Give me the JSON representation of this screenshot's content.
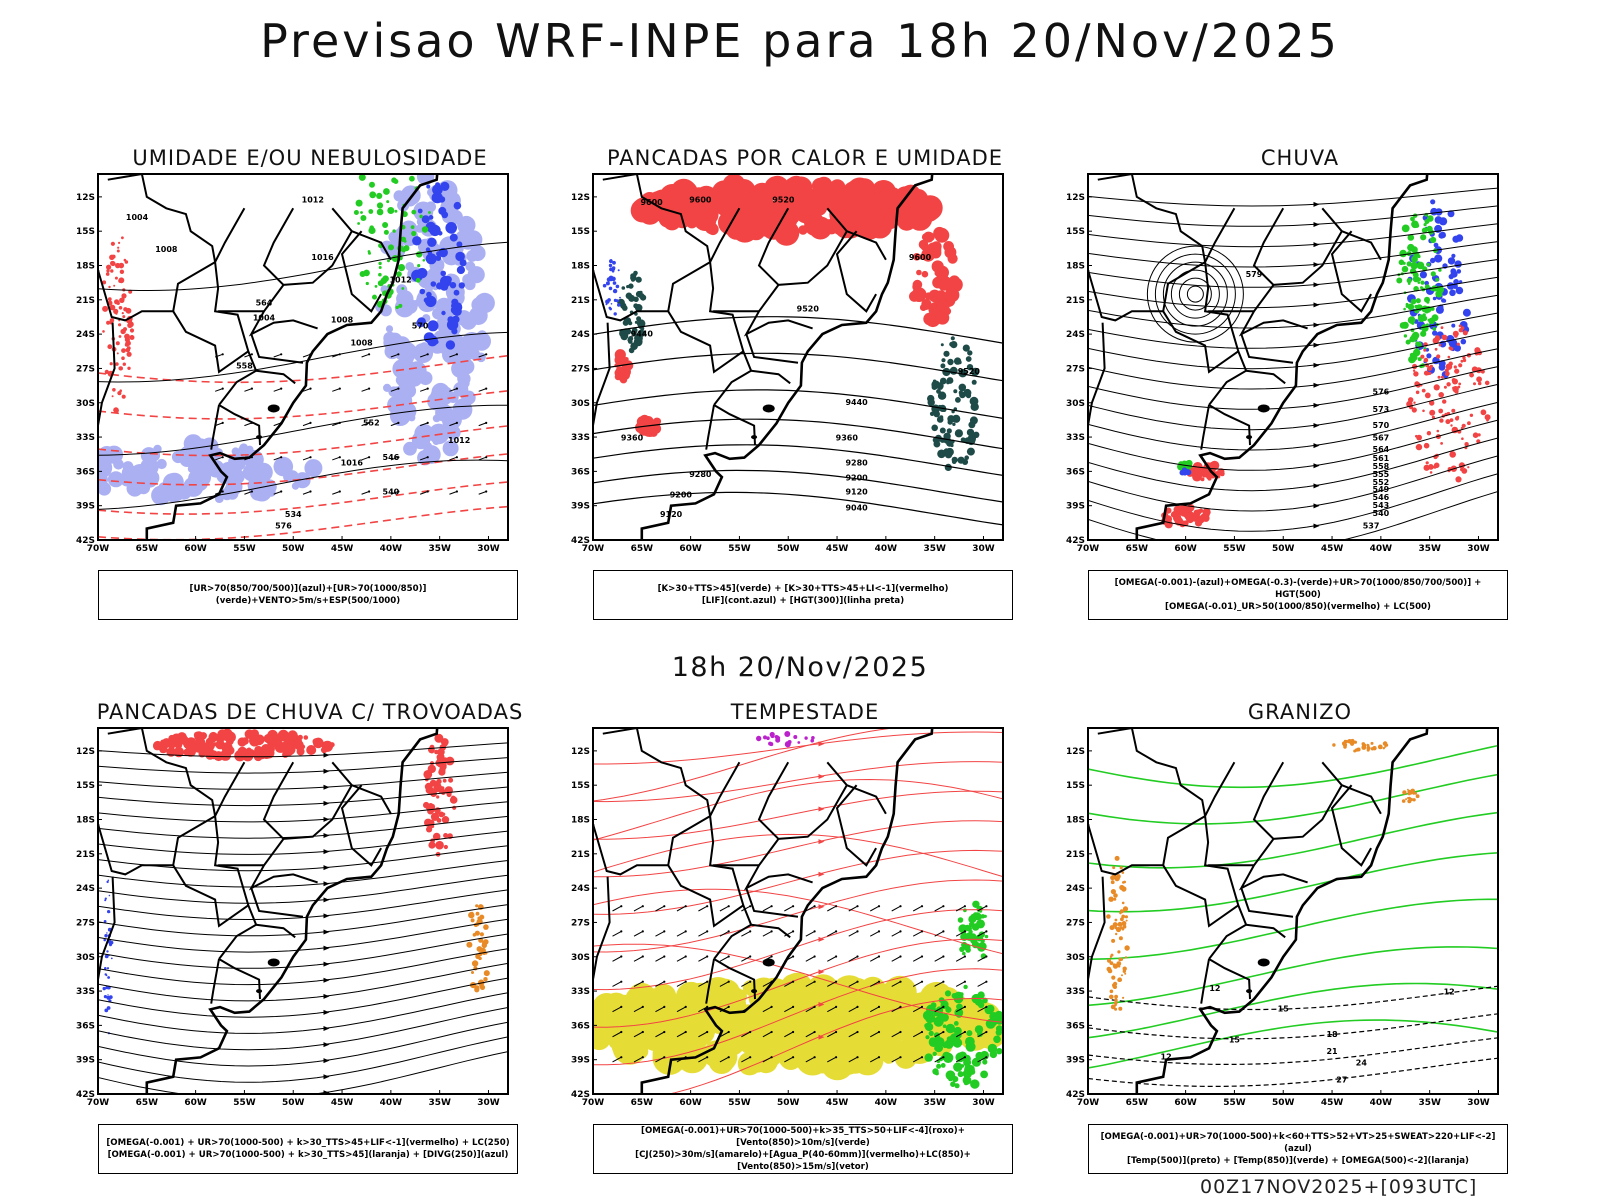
{
  "header": {
    "title": "Previsao WRF-INPE  para 18h 20/Nov/2025",
    "mid_title": "18h 20/Nov/2025",
    "footer": "00Z17NOV2025+[093UTC]"
  },
  "axes": {
    "lat_labels": [
      "12S",
      "15S",
      "18S",
      "21S",
      "24S",
      "27S",
      "30S",
      "33S",
      "36S",
      "39S",
      "42S"
    ],
    "lon_labels": [
      "70W",
      "65W",
      "60W",
      "55W",
      "50W",
      "45W",
      "40W",
      "35W",
      "30W"
    ]
  },
  "colors": {
    "red": "#f24444",
    "blue": "#3344ee",
    "lightblue": "#aab0f2",
    "green": "#22cc22",
    "darkteal": "#1e4a48",
    "yellow": "#e6dc36",
    "orange": "#e88a26",
    "purple": "#bb22cc",
    "black": "#000000"
  },
  "panels": [
    {
      "id": "umidade",
      "title": "UMIDADE E/OU NEBULOSIDADE",
      "legend": [
        "[UR>70(850/700/500)](azul)+[UR>70(1000/850)](verde)+VENTO>5m/s+ESP(500/1000)"
      ],
      "contour_labels": [
        "1004",
        "1008",
        "1012",
        "1016",
        "1004",
        "1008",
        "1012",
        "1008",
        "1012",
        "1016",
        "576",
        "570",
        "564",
        "558",
        "552",
        "546",
        "540",
        "534"
      ]
    },
    {
      "id": "pancadas-calor",
      "title": "PANCADAS POR CALOR E UMIDADE",
      "legend": [
        "[K>30+TTS>45](verde) + [K>30+TTS>45+LI<-1](vermelho)",
        "[LIF](cont.azul) + [HGT(300)](linha preta)"
      ],
      "contour_labels": [
        "9600",
        "9600",
        "9520",
        "9440",
        "9360",
        "9280",
        "9200",
        "9120",
        "9520",
        "9440",
        "9360",
        "9280",
        "9200",
        "9120",
        "9040",
        "9600",
        "9520"
      ]
    },
    {
      "id": "chuva",
      "title": "CHUVA",
      "legend": [
        "[OMEGA(-0.001)-(azul)+OMEGA(-0.3)-(verde)+UR>70(1000/850/700/500)] + HGT(500)",
        "[OMEGA(-0.01)_UR>50(1000/850)(vermelho) + LC(500)"
      ],
      "contour_labels": [
        "579",
        "576",
        "573",
        "570",
        "567",
        "564",
        "561",
        "558",
        "555",
        "552",
        "549",
        "546",
        "543",
        "540",
        "537"
      ]
    },
    {
      "id": "pancadas-trovoadas",
      "title": "PANCADAS DE CHUVA C/ TROVOADAS",
      "legend": [
        "[OMEGA(-0.001) + UR>70(1000-500) + k>30_TTS>45+LIF<-1](vermelho) + LC(250)",
        "[OMEGA(-0.001) + UR>70(1000-500) + k>30_TTS>45](laranja) + [DIVG(250)](azul)"
      ],
      "contour_labels": []
    },
    {
      "id": "tempestade",
      "title": "TEMPESTADE",
      "legend": [
        "[OMEGA(-0.001)+UR>70(1000-500)+k>35_TTS>50+LIF<-4](roxo)+[Vento(850)>10m/s](verde)",
        "[CJ(250)>30m/s](amarelo)+[Agua_P(40-60mm)](vermelho)+LC(850)+[Vento(850)>15m/s](vetor)"
      ],
      "contour_labels": []
    },
    {
      "id": "granizo",
      "title": "GRANIZO",
      "legend": [
        "[OMEGA(-0.001)+UR>70(1000-500)+k<60+TTS>52+VT>25+SWEAT>220+LIF<-2](azul)",
        "[Temp(500)](preto) + [Temp(850)](verde) + [OMEGA(500)<-2](laranja)"
      ],
      "contour_labels": [
        "12",
        "12",
        "15",
        "15",
        "18",
        "21",
        "24",
        "27",
        "12"
      ]
    }
  ]
}
